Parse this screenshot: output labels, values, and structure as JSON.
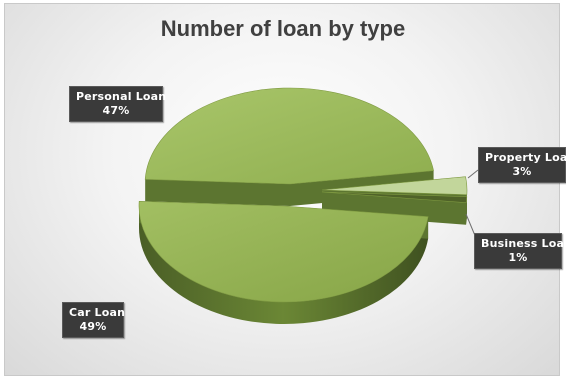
{
  "chart_data": {
    "type": "pie",
    "title": "Number of loan by type",
    "slices": [
      {
        "label": "Personal Loan",
        "percent": 47,
        "percent_text": "47%",
        "color": "#9bbb59"
      },
      {
        "label": "Property Loan",
        "percent": 3,
        "percent_text": "3%",
        "color": "#c2d69b"
      },
      {
        "label": "Business Loan",
        "percent": 1,
        "percent_text": "1%",
        "color": "#4f6228"
      },
      {
        "label": "Car Loan",
        "percent": 49,
        "percent_text": "49%",
        "color": "#8aa94a"
      }
    ],
    "style": "3d-exploded",
    "legend": "none",
    "data_labels": "callout"
  },
  "colors": {
    "label_background": "#3a3a3a",
    "label_text": "#ffffff",
    "title_text": "#404040",
    "slice_side": "#5c7530"
  }
}
